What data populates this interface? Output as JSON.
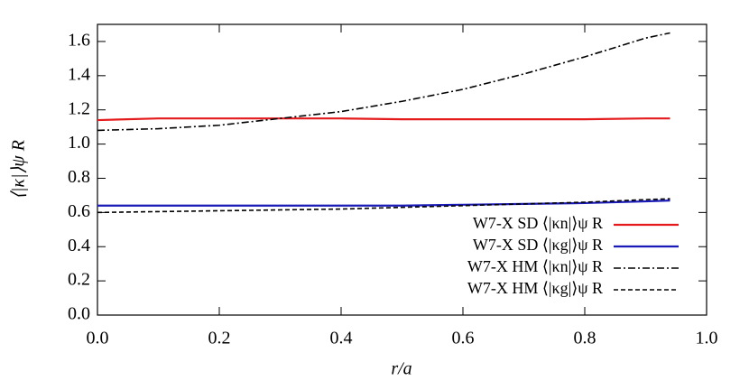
{
  "chart_data": {
    "type": "line",
    "xlabel": "r/a",
    "ylabel": "⟨|κ|⟩ψ R",
    "x": [
      0,
      0.1,
      0.2,
      0.3,
      0.4,
      0.5,
      0.6,
      0.7,
      0.8,
      0.9,
      0.94
    ],
    "series": [
      {
        "name": "W7-X SD ⟨|κn|⟩ψ R",
        "color": "#e41a1c",
        "dash": "solid",
        "values": [
          1.14,
          1.15,
          1.15,
          1.15,
          1.15,
          1.145,
          1.145,
          1.145,
          1.145,
          1.15,
          1.15
        ]
      },
      {
        "name": "W7-X SD ⟨|κg|⟩ψ R",
        "color": "#1a1ab8",
        "dash": "solid",
        "values": [
          0.64,
          0.64,
          0.64,
          0.64,
          0.64,
          0.64,
          0.645,
          0.65,
          0.655,
          0.665,
          0.67
        ]
      },
      {
        "name": "W7-X HM ⟨|κn|⟩ψ R",
        "color": "#000000",
        "dash": "dash-dot",
        "values": [
          1.08,
          1.09,
          1.11,
          1.15,
          1.19,
          1.25,
          1.32,
          1.41,
          1.51,
          1.62,
          1.65
        ]
      },
      {
        "name": "W7-X HM ⟨|κg|⟩ψ R",
        "color": "#000000",
        "dash": "dashed",
        "values": [
          0.6,
          0.605,
          0.61,
          0.615,
          0.62,
          0.63,
          0.64,
          0.65,
          0.66,
          0.675,
          0.68
        ]
      }
    ],
    "xlim": [
      0,
      1
    ],
    "ylim": [
      0,
      1.7
    ],
    "xticks": [
      {
        "value": 0,
        "label": "0.0"
      },
      0.2,
      0.4,
      0.6,
      0.8,
      {
        "value": 1,
        "label": "1.0"
      }
    ],
    "yticks": [
      {
        "value": 0,
        "label": "0.0"
      },
      0.2,
      0.4,
      0.6,
      0.8,
      {
        "value": 1,
        "label": "1.0"
      },
      1.2,
      1.4,
      1.6
    ],
    "legend": "lower-right"
  }
}
